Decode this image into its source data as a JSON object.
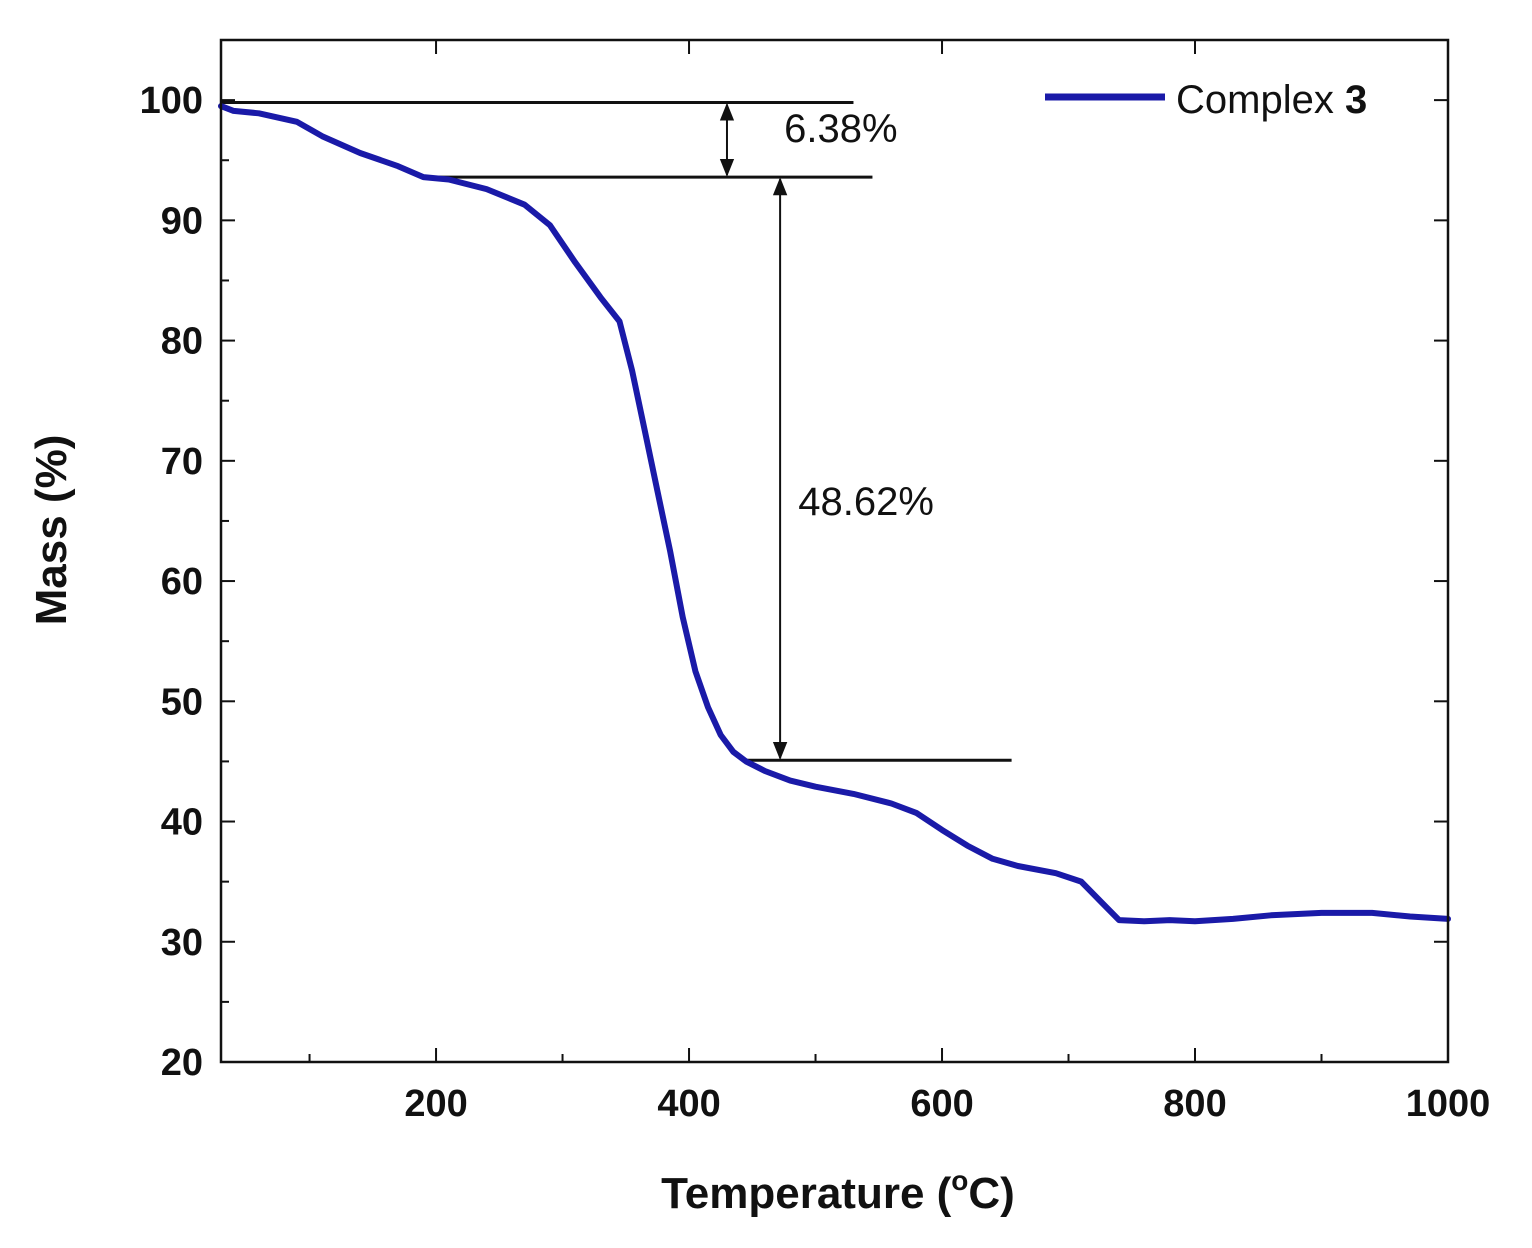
{
  "chart_data": {
    "type": "line",
    "title": "",
    "xlabel": "Temperature (",
    "xlabel_sup": "o",
    "xlabel_tail": "C)",
    "ylabel": "Mass (%)",
    "xlim": [
      30,
      1000
    ],
    "ylim": [
      20,
      105
    ],
    "x_ticks": [
      200,
      400,
      600,
      800,
      1000
    ],
    "x_tick_labels": [
      "200",
      "400",
      "600",
      "800",
      "1000"
    ],
    "x_minor_ticks": [
      100,
      300,
      500,
      700,
      900
    ],
    "y_ticks": [
      20,
      30,
      40,
      50,
      60,
      70,
      80,
      90,
      100
    ],
    "y_tick_labels": [
      "20",
      "30",
      "40",
      "50",
      "60",
      "70",
      "80",
      "90",
      "100"
    ],
    "y_minor_ticks": [
      25,
      35,
      45,
      55,
      65,
      75,
      85,
      95
    ],
    "legend": {
      "position": "top-right",
      "label": "Complex ",
      "label_bold": "3"
    },
    "colors": {
      "series": "#1a1aa8",
      "axis": "#111111"
    },
    "series": [
      {
        "name": "Complex 3",
        "x": [
          30,
          40,
          60,
          90,
          110,
          140,
          170,
          190,
          210,
          240,
          270,
          290,
          310,
          330,
          345,
          355,
          365,
          375,
          385,
          395,
          405,
          415,
          425,
          435,
          445,
          460,
          480,
          500,
          530,
          560,
          580,
          600,
          620,
          640,
          660,
          690,
          710,
          725,
          740,
          760,
          780,
          800,
          830,
          860,
          900,
          940,
          970,
          1000
        ],
        "y": [
          99.5,
          99.1,
          98.9,
          98.2,
          97.0,
          95.6,
          94.5,
          93.6,
          93.4,
          92.6,
          91.3,
          89.6,
          86.5,
          83.6,
          81.6,
          77.5,
          72.5,
          67.5,
          62.5,
          57.0,
          52.5,
          49.5,
          47.2,
          45.8,
          45.0,
          44.2,
          43.4,
          42.9,
          42.3,
          41.5,
          40.7,
          39.3,
          38.0,
          36.9,
          36.3,
          35.7,
          35.0,
          33.4,
          31.8,
          31.7,
          31.8,
          31.7,
          31.9,
          32.2,
          32.4,
          32.4,
          32.1,
          31.9
        ]
      }
    ],
    "annotations": [
      {
        "type": "hline",
        "y": 99.8,
        "x_start": 30,
        "x_end": 530
      },
      {
        "type": "hline",
        "y": 93.6,
        "x_start": 190,
        "x_end": 545
      },
      {
        "type": "hline",
        "y": 45.1,
        "x_start": 445,
        "x_end": 655
      },
      {
        "type": "double-arrow",
        "x": 430,
        "y_top": 99.8,
        "y_bottom": 93.6,
        "label": "6.38%",
        "label_x": 520,
        "label_y": 96.5
      },
      {
        "type": "double-arrow",
        "x": 472,
        "y_top": 93.6,
        "y_bottom": 45.1,
        "label": "48.62%",
        "label_x": 540,
        "label_y": 65.5
      }
    ]
  }
}
